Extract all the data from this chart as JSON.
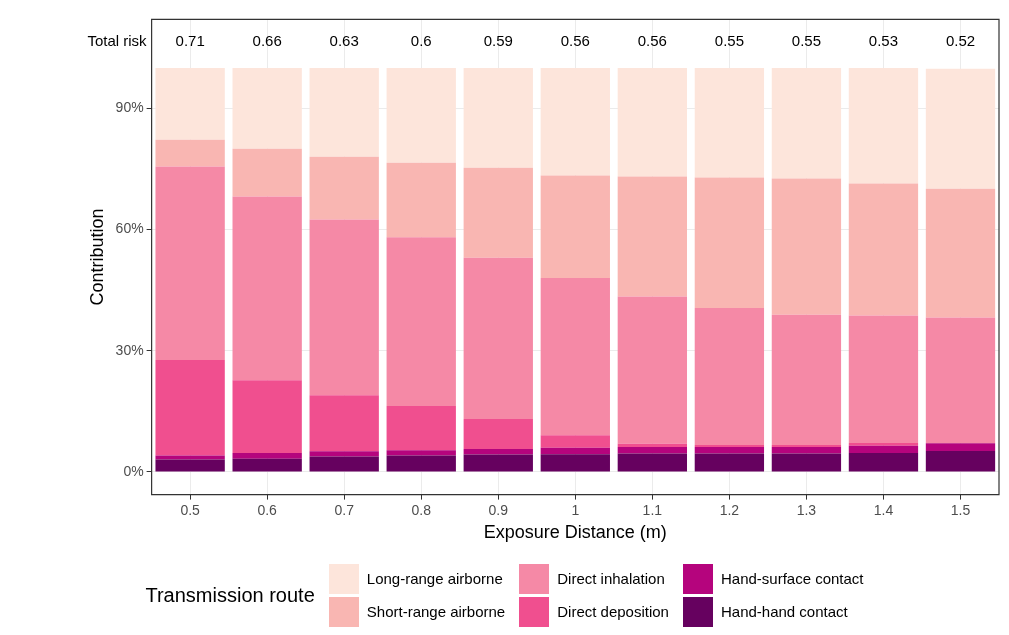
{
  "chart_data": {
    "type": "bar",
    "stacked": true,
    "xlabel": "Exposure Distance (m)",
    "ylabel": "Contribution",
    "legend_title": "Transmission route",
    "legend": "bottom",
    "grid": true,
    "categories": [
      "0.5",
      "0.6",
      "0.7",
      "0.8",
      "0.9",
      "1",
      "1.1",
      "1.2",
      "1.3",
      "1.4",
      "1.5"
    ],
    "ylim": [
      -5.6,
      112
    ],
    "yticks": [
      {
        "value": 0,
        "label": "0%"
      },
      {
        "value": 30,
        "label": "30%"
      },
      {
        "value": 60,
        "label": "60%"
      },
      {
        "value": 90,
        "label": "90%"
      }
    ],
    "series": [
      {
        "name": "Hand-hand contact",
        "color": "#66015f",
        "values": [
          3.1,
          3.3,
          3.8,
          4.1,
          4.3,
          4.4,
          4.6,
          4.6,
          4.6,
          4.7,
          5.2
        ]
      },
      {
        "name": "Hand-surface contact",
        "color": "#b5047d",
        "values": [
          1.0,
          1.4,
          1.3,
          1.3,
          1.4,
          1.6,
          1.6,
          1.6,
          1.6,
          1.8,
          1.9
        ]
      },
      {
        "name": "Direct deposition",
        "color": "#f04f8f",
        "values": [
          23.6,
          18.0,
          13.9,
          10.9,
          7.4,
          3.1,
          0.8,
          0.5,
          0.5,
          0.7,
          null
        ]
      },
      {
        "name": "Direct inhalation",
        "color": "#f589a6",
        "values": [
          47.9,
          45.5,
          43.5,
          41.8,
          39.9,
          38.9,
          36.4,
          33.9,
          32.2,
          31.5,
          31.1
        ]
      },
      {
        "name": "Short-range airborne",
        "color": "#f9b6b2",
        "values": [
          6.6,
          11.8,
          15.5,
          18.4,
          22.3,
          25.4,
          29.7,
          32.3,
          33.7,
          32.7,
          31.9
        ]
      },
      {
        "name": "Long-range airborne",
        "color": "#fde5db",
        "values": [
          17.8,
          20.0,
          22.0,
          23.5,
          24.7,
          26.6,
          26.9,
          27.1,
          27.4,
          28.6,
          29.7
        ]
      }
    ],
    "annotations": [
      "Total risk",
      "0.71",
      "0.66",
      "0.63",
      "0.6",
      "0.59",
      "0.56",
      "0.56",
      "0.55",
      "0.55",
      "0.53",
      "0.52"
    ]
  }
}
